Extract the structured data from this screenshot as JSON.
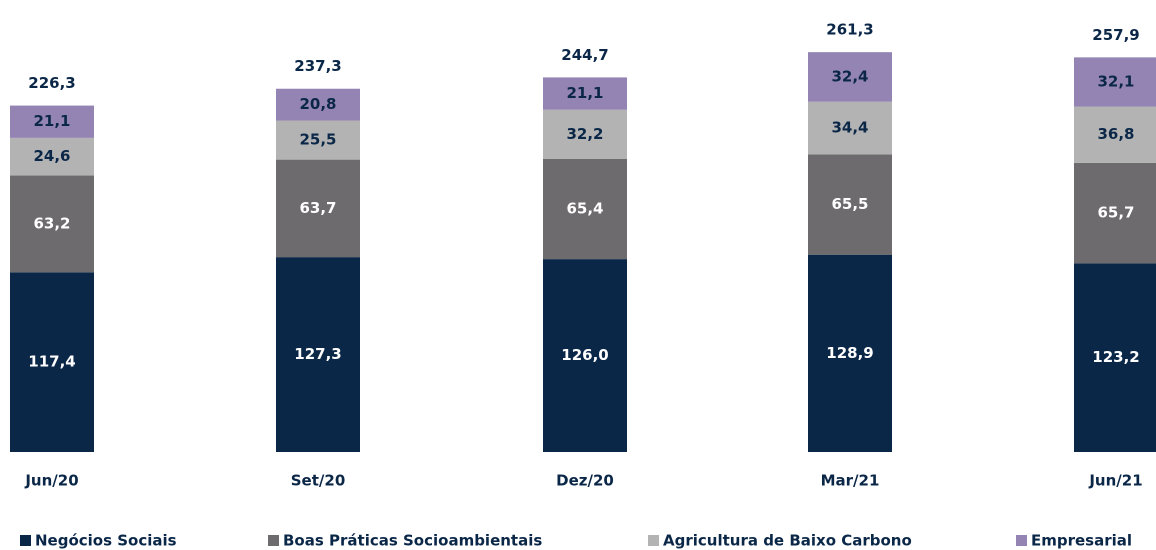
{
  "chart_data": {
    "type": "stacked_bar",
    "categories": [
      "Jun/20",
      "Set/20",
      "Dez/20",
      "Mar/21",
      "Jun/21"
    ],
    "series": [
      {
        "name": "Negócios Sociais",
        "color": "#0b2748",
        "label_color": "#ffffff",
        "values": [
          117.4,
          127.3,
          126.0,
          128.9,
          123.2
        ],
        "value_labels": [
          "117,4",
          "127,3",
          "126,0",
          "128,9",
          "123,2"
        ]
      },
      {
        "name": "Boas Práticas Socioambientais",
        "color": "#6d6b6e",
        "label_color": "#ffffff",
        "values": [
          63.2,
          63.7,
          65.4,
          65.5,
          65.7
        ],
        "value_labels": [
          "63,2",
          "63,7",
          "65,4",
          "65,5",
          "65,7"
        ]
      },
      {
        "name": "Agricultura de Baixo Carbono",
        "color": "#b3b3b3",
        "label_color": "#0b2748",
        "values": [
          24.6,
          25.5,
          32.2,
          34.4,
          36.8
        ],
        "value_labels": [
          "24,6",
          "25,5",
          "32,2",
          "34,4",
          "36,8"
        ]
      },
      {
        "name": "Empresarial",
        "color": "#9484b4",
        "label_color": "#0b2748",
        "values": [
          21.1,
          20.8,
          21.1,
          32.4,
          32.1
        ],
        "value_labels": [
          "21,1",
          "20,8",
          "21,1",
          "32,4",
          "32,1"
        ]
      }
    ],
    "totals": {
      "values": [
        226.3,
        237.3,
        244.7,
        261.3,
        257.9
      ],
      "value_labels": [
        "226,3",
        "237,3",
        "244,7",
        "261,3",
        "257,9"
      ]
    },
    "ylim": [
      0,
      261.3
    ],
    "legend": "bottom"
  }
}
